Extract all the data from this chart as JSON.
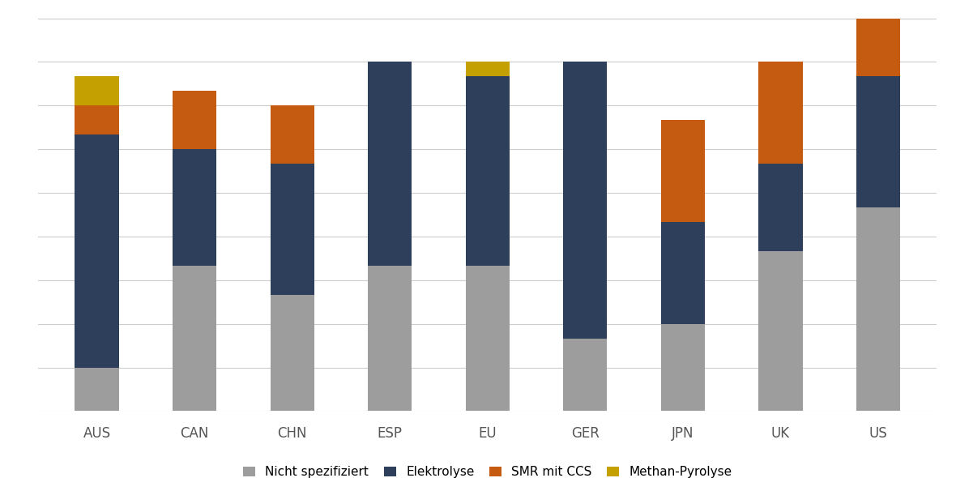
{
  "categories": [
    "AUS",
    "CAN",
    "CHN",
    "ESP",
    "EU",
    "GER",
    "JPN",
    "UK",
    "US"
  ],
  "series": {
    "Nicht spezifiziert": [
      3,
      10,
      8,
      10,
      10,
      5,
      6,
      11,
      14
    ],
    "Elektrolyse": [
      16,
      8,
      9,
      14,
      13,
      19,
      7,
      6,
      9
    ],
    "SMR mit CCS": [
      2,
      4,
      4,
      0,
      0,
      0,
      7,
      7,
      4
    ],
    "Methan-Pyrolyse": [
      2,
      0,
      0,
      0,
      1,
      0,
      0,
      0,
      0
    ]
  },
  "colors": {
    "Nicht spezifiziert": "#9d9d9d",
    "Elektrolyse": "#2e3f5c",
    "SMR mit CCS": "#c55a11",
    "Methan-Pyrolyse": "#c4a000"
  },
  "legend_order": [
    "Nicht spezifiziert",
    "Elektrolyse",
    "SMR mit CCS",
    "Methan-Pyrolyse"
  ],
  "bar_width": 0.45,
  "background_color": "#ffffff",
  "grid_color": "#cccccc",
  "figsize": [
    11.8,
    5.9
  ],
  "dpi": 100
}
